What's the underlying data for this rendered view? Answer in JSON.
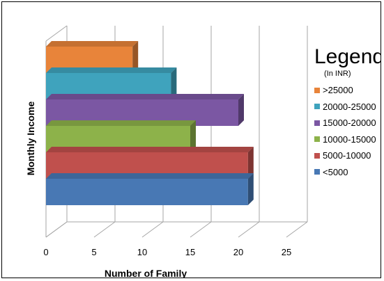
{
  "chart_data": {
    "type": "bar",
    "orientation": "horizontal",
    "three_d": true,
    "title": "",
    "xlabel": "Number of Family",
    "ylabel": "Monthly Income",
    "xlim": [
      0,
      25
    ],
    "xticks": [
      "0",
      "5",
      "10",
      "15",
      "20",
      "25"
    ],
    "grid": true,
    "legend_position": "right",
    "legend_title": "Legend",
    "legend_subtitle": "(In INR)",
    "categories": [
      ">25000",
      "20000-25000",
      "15000-20000",
      "10000-15000",
      "5000-10000",
      "<5000"
    ],
    "values": [
      9,
      13,
      20,
      15,
      21,
      21
    ],
    "colors": [
      "#e8843a",
      "#3fa3bd",
      "#7b57a3",
      "#8db24a",
      "#c0504d",
      "#4878b4"
    ]
  }
}
